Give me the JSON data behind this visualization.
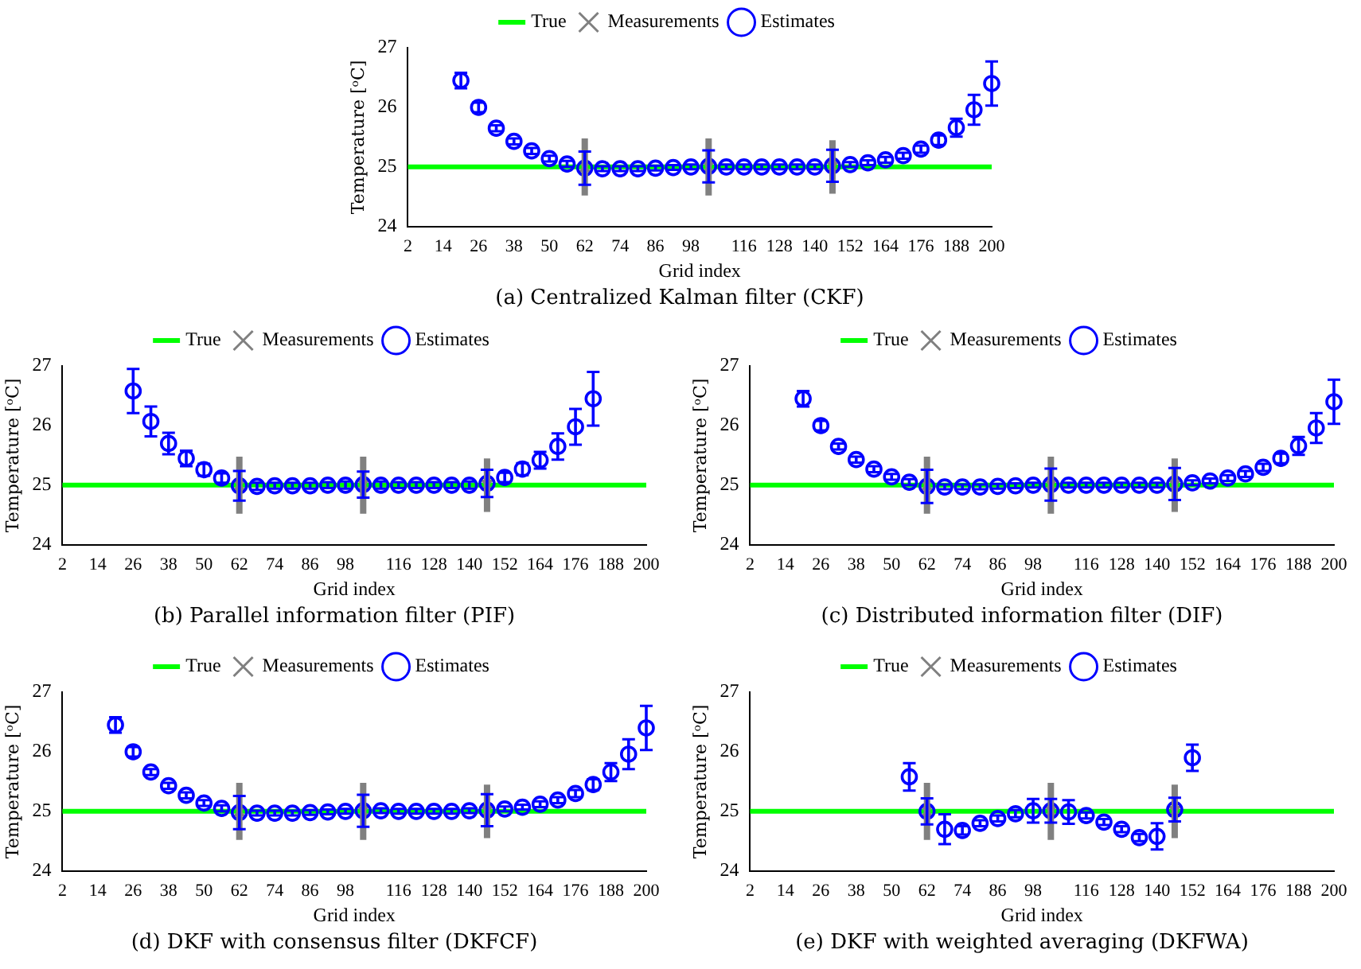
{
  "chart_data": [
    {
      "type": "scatter",
      "title": "(a) Centralized Kalman filter (CKF)",
      "xlabel": "Grid index",
      "ylabel": "Temperature [ᵒC]",
      "xlim": [
        2,
        200
      ],
      "xticks": [
        2,
        14,
        26,
        38,
        50,
        62,
        74,
        86,
        98,
        116,
        128,
        140,
        152,
        164,
        176,
        188,
        200
      ],
      "ylim": [
        24,
        27
      ],
      "yticks": [
        24,
        25,
        26,
        27
      ],
      "legend": "top",
      "grid": false,
      "series": [
        {
          "name": "True",
          "type": "line",
          "color": "#00ff00",
          "x": [
            2,
            200
          ],
          "values": [
            25,
            25
          ]
        },
        {
          "name": "Measurements",
          "type": "scatter",
          "marker": "cross",
          "color": "#808080",
          "x": [
            62,
            104,
            146
          ],
          "values": [
            25,
            25,
            25
          ],
          "errors": [
            0.48,
            0.48,
            0.45
          ]
        },
        {
          "name": "Estimates",
          "type": "scatter",
          "marker": "circle",
          "color": "#0000ff",
          "x": [
            20,
            26,
            32,
            38,
            44,
            50,
            56,
            62,
            68,
            74,
            80,
            86,
            92,
            98,
            104,
            110,
            116,
            122,
            128,
            134,
            140,
            146,
            152,
            158,
            164,
            170,
            176,
            182,
            188,
            194,
            200
          ],
          "values": [
            26.45,
            26.0,
            25.65,
            25.43,
            25.27,
            25.14,
            25.05,
            24.98,
            24.97,
            24.97,
            24.97,
            24.98,
            24.99,
            25.0,
            25.01,
            25.0,
            25.0,
            25.0,
            25.0,
            25.0,
            25.0,
            25.02,
            25.04,
            25.07,
            25.12,
            25.19,
            25.3,
            25.45,
            25.66,
            25.96,
            26.4
          ],
          "errors": [
            0.13,
            0.08,
            0.05,
            0.05,
            0.05,
            0.05,
            0.05,
            0.28,
            0.04,
            0.04,
            0.04,
            0.04,
            0.04,
            0.04,
            0.27,
            0.04,
            0.04,
            0.04,
            0.04,
            0.04,
            0.04,
            0.27,
            0.04,
            0.04,
            0.05,
            0.05,
            0.06,
            0.08,
            0.15,
            0.25,
            0.37
          ]
        }
      ]
    },
    {
      "type": "scatter",
      "title": "(b) Parallel information filter (PIF)",
      "xlabel": "Grid index",
      "ylabel": "Temperature [ᵒC]",
      "xlim": [
        2,
        200
      ],
      "xticks": [
        2,
        14,
        26,
        38,
        50,
        62,
        74,
        86,
        98,
        116,
        128,
        140,
        152,
        164,
        176,
        188,
        200
      ],
      "ylim": [
        24,
        27
      ],
      "yticks": [
        24,
        25,
        26,
        27
      ],
      "legend": "top",
      "grid": false,
      "series": [
        {
          "name": "True",
          "type": "line",
          "color": "#00ff00",
          "x": [
            2,
            200
          ],
          "values": [
            25,
            25
          ]
        },
        {
          "name": "Measurements",
          "type": "scatter",
          "marker": "cross",
          "color": "#808080",
          "x": [
            62,
            104,
            146
          ],
          "values": [
            25,
            25,
            25
          ],
          "errors": [
            0.48,
            0.48,
            0.45
          ]
        },
        {
          "name": "Estimates",
          "type": "scatter",
          "marker": "circle",
          "color": "#0000ff",
          "x": [
            26,
            32,
            38,
            44,
            50,
            56,
            62,
            68,
            74,
            80,
            86,
            92,
            98,
            104,
            110,
            116,
            122,
            128,
            134,
            140,
            146,
            152,
            158,
            164,
            170,
            176,
            182
          ],
          "values": [
            26.58,
            26.07,
            25.7,
            25.45,
            25.26,
            25.12,
            24.99,
            24.98,
            24.99,
            24.99,
            24.99,
            25.0,
            25.0,
            25.01,
            25.0,
            25.0,
            25.0,
            25.0,
            25.0,
            25.0,
            25.03,
            25.13,
            25.27,
            25.42,
            25.65,
            25.98,
            26.45
          ],
          "errors": [
            0.37,
            0.25,
            0.18,
            0.13,
            0.1,
            0.08,
            0.25,
            0.06,
            0.05,
            0.05,
            0.05,
            0.05,
            0.06,
            0.22,
            0.06,
            0.05,
            0.05,
            0.05,
            0.05,
            0.06,
            0.23,
            0.08,
            0.1,
            0.14,
            0.22,
            0.3,
            0.45
          ]
        }
      ]
    },
    {
      "type": "scatter",
      "title": "(c) Distributed information filter (DIF)",
      "xlabel": "Grid index",
      "ylabel": "Temperature [ᵒC]",
      "xlim": [
        2,
        200
      ],
      "xticks": [
        2,
        14,
        26,
        38,
        50,
        62,
        74,
        86,
        98,
        116,
        128,
        140,
        152,
        164,
        176,
        188,
        200
      ],
      "ylim": [
        24,
        27
      ],
      "yticks": [
        24,
        25,
        26,
        27
      ],
      "legend": "top",
      "grid": false,
      "series": [
        {
          "name": "True",
          "type": "line",
          "color": "#00ff00",
          "x": [
            2,
            200
          ],
          "values": [
            25,
            25
          ]
        },
        {
          "name": "Measurements",
          "type": "scatter",
          "marker": "cross",
          "color": "#808080",
          "x": [
            62,
            104,
            146
          ],
          "values": [
            25,
            25,
            25
          ],
          "errors": [
            0.48,
            0.48,
            0.45
          ]
        },
        {
          "name": "Estimates",
          "type": "scatter",
          "marker": "circle",
          "color": "#0000ff",
          "x": [
            20,
            26,
            32,
            38,
            44,
            50,
            56,
            62,
            68,
            74,
            80,
            86,
            92,
            98,
            104,
            110,
            116,
            122,
            128,
            134,
            140,
            146,
            152,
            158,
            164,
            170,
            176,
            182,
            188,
            194,
            200
          ],
          "values": [
            26.45,
            26.0,
            25.65,
            25.43,
            25.27,
            25.14,
            25.05,
            24.98,
            24.97,
            24.97,
            24.97,
            24.98,
            24.99,
            25.0,
            25.01,
            25.0,
            25.0,
            25.0,
            25.0,
            25.0,
            25.0,
            25.02,
            25.04,
            25.07,
            25.12,
            25.19,
            25.3,
            25.45,
            25.66,
            25.96,
            26.4
          ],
          "errors": [
            0.13,
            0.08,
            0.05,
            0.05,
            0.05,
            0.05,
            0.05,
            0.28,
            0.04,
            0.04,
            0.04,
            0.04,
            0.04,
            0.04,
            0.27,
            0.04,
            0.04,
            0.04,
            0.04,
            0.04,
            0.04,
            0.27,
            0.04,
            0.04,
            0.05,
            0.05,
            0.06,
            0.08,
            0.15,
            0.25,
            0.37
          ]
        }
      ]
    },
    {
      "type": "scatter",
      "title": "(d) DKF with consensus filter (DKFCF)",
      "xlabel": "Grid index",
      "ylabel": "Temperature [ᵒC]",
      "xlim": [
        2,
        200
      ],
      "xticks": [
        2,
        14,
        26,
        38,
        50,
        62,
        74,
        86,
        98,
        116,
        128,
        140,
        152,
        164,
        176,
        188,
        200
      ],
      "ylim": [
        24,
        27
      ],
      "yticks": [
        24,
        25,
        26,
        27
      ],
      "legend": "top",
      "grid": false,
      "series": [
        {
          "name": "True",
          "type": "line",
          "color": "#00ff00",
          "x": [
            2,
            200
          ],
          "values": [
            25,
            25
          ]
        },
        {
          "name": "Measurements",
          "type": "scatter",
          "marker": "cross",
          "color": "#808080",
          "x": [
            62,
            104,
            146
          ],
          "values": [
            25,
            25,
            25
          ],
          "errors": [
            0.48,
            0.48,
            0.45
          ]
        },
        {
          "name": "Estimates",
          "type": "scatter",
          "marker": "circle",
          "color": "#0000ff",
          "x": [
            20,
            26,
            32,
            38,
            44,
            50,
            56,
            62,
            68,
            74,
            80,
            86,
            92,
            98,
            104,
            110,
            116,
            122,
            128,
            134,
            140,
            146,
            152,
            158,
            164,
            170,
            176,
            182,
            188,
            194,
            200
          ],
          "values": [
            26.45,
            26.0,
            25.66,
            25.43,
            25.27,
            25.14,
            25.05,
            24.98,
            24.97,
            24.97,
            24.97,
            24.98,
            24.99,
            25.0,
            25.01,
            25.01,
            25.0,
            25.0,
            25.0,
            25.0,
            25.01,
            25.02,
            25.04,
            25.07,
            25.12,
            25.19,
            25.3,
            25.45,
            25.66,
            25.96,
            26.4
          ],
          "errors": [
            0.13,
            0.08,
            0.05,
            0.05,
            0.05,
            0.05,
            0.05,
            0.28,
            0.04,
            0.04,
            0.04,
            0.04,
            0.04,
            0.04,
            0.27,
            0.04,
            0.04,
            0.04,
            0.04,
            0.04,
            0.04,
            0.27,
            0.04,
            0.04,
            0.05,
            0.05,
            0.06,
            0.09,
            0.15,
            0.25,
            0.37
          ]
        }
      ]
    },
    {
      "type": "scatter",
      "title": "(e) DKF with weighted averaging (DKFWA)",
      "xlabel": "Grid index",
      "ylabel": "Temperature [ᵒC]",
      "xlim": [
        2,
        200
      ],
      "xticks": [
        2,
        14,
        26,
        38,
        50,
        62,
        74,
        86,
        98,
        116,
        128,
        140,
        152,
        164,
        176,
        188,
        200
      ],
      "ylim": [
        24,
        27
      ],
      "yticks": [
        24,
        25,
        26,
        27
      ],
      "legend": "top",
      "grid": false,
      "series": [
        {
          "name": "True",
          "type": "line",
          "color": "#00ff00",
          "x": [
            2,
            200
          ],
          "values": [
            25,
            25
          ]
        },
        {
          "name": "Measurements",
          "type": "scatter",
          "marker": "cross",
          "color": "#808080",
          "x": [
            62,
            104,
            146
          ],
          "values": [
            25,
            25,
            25
          ],
          "errors": [
            0.48,
            0.48,
            0.45
          ]
        },
        {
          "name": "Estimates",
          "type": "scatter",
          "marker": "circle",
          "color": "#0000ff",
          "x": [
            56,
            62,
            68,
            74,
            80,
            86,
            92,
            98,
            104,
            110,
            116,
            122,
            128,
            134,
            140,
            146,
            152
          ],
          "values": [
            25.58,
            25.0,
            24.7,
            24.68,
            24.8,
            24.88,
            24.96,
            25.01,
            25.01,
            24.99,
            24.93,
            24.82,
            24.7,
            24.56,
            24.58,
            25.03,
            25.9
          ],
          "errors": [
            0.23,
            0.22,
            0.25,
            0.07,
            0.05,
            0.05,
            0.06,
            0.2,
            0.2,
            0.2,
            0.05,
            0.05,
            0.05,
            0.06,
            0.22,
            0.2,
            0.22
          ]
        }
      ]
    }
  ]
}
